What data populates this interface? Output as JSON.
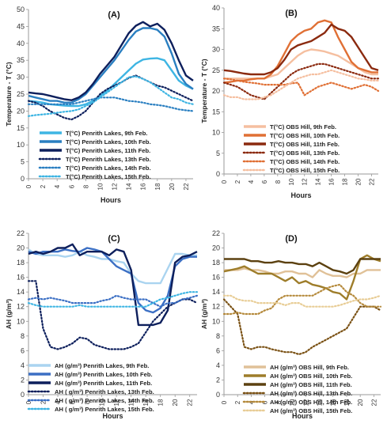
{
  "figure": {
    "background": "#ffffff"
  },
  "chart_data": [
    {
      "type": "line",
      "title": "(A)",
      "xlabel": "Hours",
      "ylabel": "Temperature - T (°C)",
      "xlim": [
        0,
        23
      ],
      "ylim": [
        0,
        50
      ],
      "xticks": [
        0,
        2,
        4,
        6,
        8,
        10,
        12,
        14,
        16,
        18,
        20,
        22
      ],
      "yticks": [
        0,
        5,
        10,
        15,
        20,
        25,
        30,
        35,
        40,
        45,
        50
      ],
      "legend_position": "bottom-left",
      "series": [
        {
          "name": "T(°C) Penrith Lakes, 9th Feb.",
          "color": "#3eb5e3",
          "dash": "solid",
          "values": [
            23,
            22.8,
            22.5,
            22,
            21.8,
            21.6,
            21.5,
            21.5,
            22,
            23,
            24.5,
            26,
            28,
            30,
            32,
            34,
            35.2,
            35.5,
            35.6,
            35,
            32,
            29,
            27.5,
            26.5
          ]
        },
        {
          "name": "T(°C) Penrith Lakes, 10th Feb.",
          "color": "#2a7fc1",
          "dash": "solid",
          "values": [
            24.5,
            24,
            23.5,
            23,
            23,
            22.5,
            22.5,
            23.5,
            25,
            27.5,
            30,
            32.5,
            35,
            38,
            41,
            43.5,
            44.5,
            44.5,
            44,
            42,
            37,
            31,
            28,
            26.5
          ]
        },
        {
          "name": "T(°C) Penrith Lakes, 11th Feb.",
          "color": "#0d1f5c",
          "dash": "solid",
          "values": [
            25.5,
            25.2,
            25,
            24.5,
            24,
            23.5,
            23.2,
            24,
            25.5,
            28,
            31,
            33.5,
            36,
            39.5,
            43,
            45.2,
            46.3,
            45,
            45.8,
            44,
            40,
            35,
            30.5,
            29
          ]
        },
        {
          "name": "T(°C) Penrith Lakes, 13th Feb.",
          "color": "#0d1f5c",
          "dash": "dot",
          "values": [
            23,
            22.5,
            21.5,
            20,
            19,
            18,
            17.5,
            18.5,
            20,
            22.5,
            25,
            26.5,
            27.5,
            28.5,
            29.8,
            30.5,
            29.5,
            28.5,
            27.5,
            27,
            26,
            25,
            24,
            23
          ]
        },
        {
          "name": "T(°C) Penrith Lakes, 14th Feb.",
          "color": "#2a7fc1",
          "dash": "dot",
          "values": [
            22,
            22,
            22,
            22,
            22,
            22,
            22,
            22.5,
            23,
            23.5,
            24,
            24,
            24,
            23.5,
            23,
            22.8,
            22.5,
            22,
            21.8,
            21.5,
            21,
            20.5,
            20.2,
            20
          ]
        },
        {
          "name": "T(°C) Penrith Lakes, 15th Feb.",
          "color": "#3eb5e3",
          "dash": "dot",
          "values": [
            18.5,
            18.8,
            19,
            19.2,
            19.5,
            19.8,
            20,
            20.5,
            21.5,
            22.5,
            24,
            25.5,
            27,
            28.5,
            30,
            30.2,
            29.5,
            28.5,
            27,
            25.5,
            24,
            23.5,
            22.5,
            22
          ]
        }
      ]
    },
    {
      "type": "line",
      "title": "(B)",
      "xlabel": "Hours",
      "ylabel": "Temperature - T (°C)",
      "xlim": [
        0,
        23
      ],
      "ylim": [
        0,
        40
      ],
      "xticks": [
        0,
        2,
        4,
        6,
        8,
        10,
        12,
        14,
        16,
        18,
        20,
        22
      ],
      "yticks": [
        0,
        5,
        10,
        15,
        20,
        25,
        30,
        35,
        40
      ],
      "legend_position": "bottom-left",
      "series": [
        {
          "name": "T(°C) OBS Hill, 9th Feb.",
          "color": "#f5bfa0",
          "dash": "solid",
          "values": [
            23,
            23,
            23,
            23,
            23,
            23,
            23,
            23.5,
            24,
            25.5,
            27,
            28.5,
            29.5,
            30,
            29.8,
            29.5,
            29,
            28.5,
            27.5,
            26.5,
            25.5,
            24.5,
            24,
            24
          ]
        },
        {
          "name": "T(°C) OBS Hill, 10th Feb.",
          "color": "#e07035",
          "dash": "solid",
          "values": [
            22,
            22.2,
            22.5,
            22.5,
            22.8,
            23,
            23,
            24,
            26,
            29,
            32,
            33.5,
            34.5,
            35,
            36.5,
            37,
            36.5,
            33,
            30,
            27,
            25.5,
            25,
            24.5,
            24.5
          ]
        },
        {
          "name": "T(°C) OBS Hill, 11th Feb.",
          "color": "#8b2a0f",
          "dash": "solid",
          "values": [
            25,
            24.8,
            24.5,
            24.2,
            24,
            24,
            24,
            24.5,
            25.5,
            27.5,
            30,
            31,
            31.5,
            32,
            33,
            34,
            36,
            35,
            34.5,
            33,
            30.5,
            28,
            25.5,
            25
          ]
        },
        {
          "name": "T(°C) OBS Hill, 13th Feb.",
          "color": "#8b2a0f",
          "dash": "dot",
          "values": [
            22,
            21.5,
            21,
            20,
            19,
            18.5,
            18,
            19.5,
            21,
            22.5,
            24,
            25,
            25.5,
            26,
            26.5,
            26.5,
            26,
            25.5,
            25,
            24.5,
            24,
            23.5,
            23,
            23
          ]
        },
        {
          "name": "T(°C) OBS Hill, 14th Feb.",
          "color": "#e07035",
          "dash": "dot",
          "values": [
            23,
            22.8,
            22.5,
            22.2,
            22,
            21.8,
            21.5,
            21.5,
            21.5,
            21.5,
            21.8,
            22,
            19,
            20,
            21,
            21.5,
            22,
            21.5,
            21,
            20.5,
            21,
            21.5,
            21,
            20
          ]
        },
        {
          "name": "T(°C) OBS Hill, 15th Feb.",
          "color": "#f5bfa0",
          "dash": "dot",
          "values": [
            19,
            18.5,
            18.5,
            18,
            18,
            18,
            18.5,
            19,
            20,
            21,
            22,
            23,
            23.5,
            24,
            24,
            24.5,
            25,
            24.5,
            24,
            23.5,
            23,
            22.8,
            22.5,
            22.5
          ]
        }
      ]
    },
    {
      "type": "line",
      "title": "(C)",
      "xlabel": "Hours",
      "ylabel": "AH (g/m³)",
      "xlim": [
        0,
        23
      ],
      "ylim": [
        0,
        22
      ],
      "xticks": [
        0,
        2,
        4,
        6,
        8,
        10,
        12,
        14,
        16,
        18,
        20,
        22
      ],
      "yticks": [
        0,
        2,
        4,
        6,
        8,
        10,
        12,
        14,
        16,
        18,
        20,
        22
      ],
      "legend_position": "bottom-left",
      "series": [
        {
          "name": "AH (g/m³) Penrith Lakes,  9th Feb.",
          "color": "#aad4f0",
          "dash": "solid",
          "values": [
            19.8,
            19.2,
            19,
            19,
            19,
            18.8,
            19,
            19.5,
            19,
            18.8,
            18.5,
            18.5,
            18.2,
            18,
            16.5,
            15.5,
            15.2,
            15.2,
            15.2,
            17.2,
            19.2,
            19.2,
            19,
            19
          ]
        },
        {
          "name": "AH (g/m³) Penrith Lakes,  10th Feb.",
          "color": "#3b6fc4",
          "dash": "solid",
          "values": [
            19.5,
            19.2,
            19.5,
            19.5,
            19.5,
            19.8,
            19.6,
            19.5,
            20,
            19.8,
            19.5,
            18.5,
            17.5,
            17,
            16.5,
            12.5,
            11.5,
            11.2,
            11.8,
            13.5,
            17.5,
            18.5,
            18.8,
            18.8
          ]
        },
        {
          "name": "AH (g/m³) Penrith Lakes,  11th Feb.",
          "color": "#0d1f5c",
          "dash": "solid",
          "values": [
            19.2,
            19.5,
            19.2,
            19.5,
            20,
            20,
            20.5,
            19,
            19.5,
            19.5,
            19.5,
            19,
            19.8,
            19.5,
            17,
            9.5,
            9.5,
            9.5,
            9.8,
            11.5,
            18,
            18.8,
            19,
            19.5
          ]
        },
        {
          "name": "AH ( g/m³) Penrith Lakes, 13th Feb.",
          "color": "#0d1f5c",
          "dash": "dot",
          "values": [
            15.5,
            15.5,
            9,
            6.5,
            6.2,
            6.5,
            7,
            7.8,
            7.6,
            6.8,
            6.5,
            6.2,
            6.2,
            6.2,
            6.5,
            7,
            8.5,
            10,
            11,
            12,
            12.5,
            13,
            13,
            12.5
          ]
        },
        {
          "name": "AH ( g/m³) Penrith Lakes, 14th Feb.",
          "color": "#3b6fc4",
          "dash": "dot",
          "values": [
            13,
            13.2,
            13,
            13.2,
            13,
            12.8,
            12.5,
            12.5,
            12.5,
            12.5,
            12.8,
            13,
            13.5,
            13.2,
            13,
            13,
            13,
            12.5,
            12,
            12.5,
            12.5,
            13,
            13.2,
            13.5
          ]
        },
        {
          "name": "AH ( g/m³) Penrith Lakes, 15th Feb.",
          "color": "#3eb5e3",
          "dash": "dot",
          "values": [
            12.5,
            12.2,
            12,
            12,
            12,
            12,
            12,
            12.2,
            12,
            12,
            12,
            12,
            12,
            12,
            12,
            12,
            12,
            12.5,
            13,
            13.2,
            13.5,
            13.8,
            14,
            14
          ]
        }
      ]
    },
    {
      "type": "line",
      "title": "(D)",
      "xlabel": "Hours",
      "ylabel": "AH (g/m³)",
      "xlim": [
        0,
        23
      ],
      "ylim": [
        0,
        22
      ],
      "xticks": [
        0,
        2,
        4,
        6,
        8,
        10,
        12,
        14,
        16,
        18,
        20,
        22
      ],
      "yticks": [
        0,
        2,
        4,
        6,
        8,
        10,
        12,
        14,
        16,
        18,
        20,
        22
      ],
      "legend_position": "bottom-left",
      "series": [
        {
          "name": "AH (g/m³) OBS Hill,  9th Feb.",
          "color": "#e0c198",
          "dash": "solid",
          "values": [
            17,
            17,
            17,
            17.2,
            17,
            17,
            16.8,
            16.5,
            16.5,
            16.8,
            16.8,
            16.5,
            16.5,
            16,
            17,
            16.5,
            16.2,
            16.2,
            16,
            16.5,
            16.5,
            17,
            17,
            17
          ]
        },
        {
          "name": "AH (g/m³) OBS Hill,  10th Feb.",
          "color": "#9e7d2a",
          "dash": "solid",
          "values": [
            16.8,
            17,
            17.2,
            17.5,
            17,
            16.5,
            16.5,
            16.5,
            16,
            15.5,
            16,
            15.2,
            15.5,
            15,
            14.8,
            14.5,
            14,
            13.8,
            13,
            15.5,
            18.5,
            19,
            18.5,
            18.2
          ]
        },
        {
          "name": "AH (g/m³) OBS Hill,  11th Feb.",
          "color": "#5c4110",
          "dash": "solid",
          "values": [
            18.5,
            18.5,
            18.5,
            18.5,
            18.2,
            18.2,
            18,
            18,
            18.2,
            18,
            18,
            17.8,
            17.8,
            17.5,
            18,
            17.5,
            17,
            16.8,
            16.5,
            17,
            18.5,
            18.5,
            18.5,
            18.5
          ]
        },
        {
          "name": "AH (g/m³) OBS Hill, 13th Feb.",
          "color": "#7a5114",
          "dash": "dot",
          "values": [
            13,
            12,
            11,
            6.5,
            6.2,
            6.5,
            6.5,
            6.2,
            6,
            5.8,
            5.8,
            5.5,
            5.8,
            6.5,
            7,
            7.5,
            8,
            8.5,
            9,
            10.5,
            12,
            12,
            12,
            11.5
          ]
        },
        {
          "name": "AH (g/m³) OBS Hill, 14th Feb.",
          "color": "#b58a3c",
          "dash": "dot",
          "values": [
            11,
            11,
            11.2,
            11,
            11,
            11,
            11.5,
            11.8,
            13,
            13.5,
            13.5,
            13.5,
            13.5,
            13.5,
            14,
            14.5,
            14.8,
            15,
            14,
            13.5,
            12.5,
            12,
            12,
            12
          ]
        },
        {
          "name": "AH (g/m³) OBS Hill, 15th Feb.",
          "color": "#e8cd96",
          "dash": "dot",
          "values": [
            13.5,
            13.5,
            13,
            12.8,
            12.8,
            12.5,
            12.5,
            12.5,
            12.5,
            12.2,
            12.5,
            12.5,
            12,
            12,
            12,
            12,
            12,
            12.2,
            12.5,
            12.8,
            13,
            13,
            13.2,
            13.5
          ]
        }
      ]
    }
  ]
}
